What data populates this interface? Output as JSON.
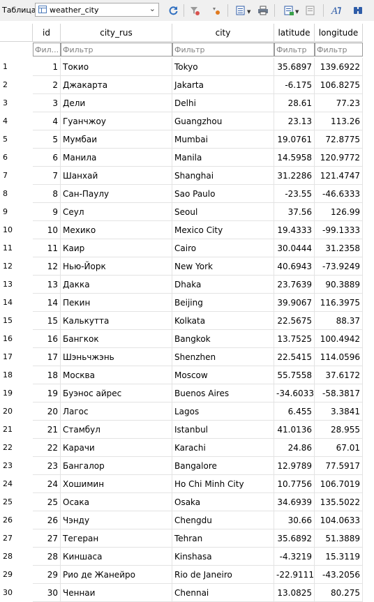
{
  "toolbar": {
    "label": "Таблица:",
    "table_name": "weather_city"
  },
  "columns": [
    "id",
    "city_rus",
    "city",
    "latitude",
    "longitude"
  ],
  "filters": {
    "id": "Фил...",
    "city_rus": "Фильтр",
    "city": "Фильтр",
    "latitude": "Фильтр",
    "longitude": "Фильтр"
  },
  "rows": [
    [
      "1",
      "1",
      "Токио",
      "Tokyo",
      "35.6897",
      "139.6922"
    ],
    [
      "2",
      "2",
      "Джакарта",
      "Jakarta",
      "-6.175",
      "106.8275"
    ],
    [
      "3",
      "3",
      "Дели",
      "Delhi",
      "28.61",
      "77.23"
    ],
    [
      "4",
      "4",
      "Гуанчжоу",
      "Guangzhou",
      "23.13",
      "113.26"
    ],
    [
      "5",
      "5",
      "Мумбаи",
      "Mumbai",
      "19.0761",
      "72.8775"
    ],
    [
      "6",
      "6",
      "Манила",
      "Manila",
      "14.5958",
      "120.9772"
    ],
    [
      "7",
      "7",
      "Шанхай",
      "Shanghai",
      "31.2286",
      "121.4747"
    ],
    [
      "8",
      "8",
      "Сан-Паулу",
      "Sao Paulo",
      "-23.55",
      "-46.6333"
    ],
    [
      "9",
      "9",
      "Сеул",
      "Seoul",
      "37.56",
      "126.99"
    ],
    [
      "10",
      "10",
      "Мехико",
      "Mexico City",
      "19.4333",
      "-99.1333"
    ],
    [
      "11",
      "11",
      "Каир",
      "Cairo",
      "30.0444",
      "31.2358"
    ],
    [
      "12",
      "12",
      "Нью-Йорк",
      "New York",
      "40.6943",
      "-73.9249"
    ],
    [
      "13",
      "13",
      "Дакка",
      "Dhaka",
      "23.7639",
      "90.3889"
    ],
    [
      "14",
      "14",
      "Пекин",
      "Beijing",
      "39.9067",
      "116.3975"
    ],
    [
      "15",
      "15",
      "Калькутта",
      "Kolkata",
      "22.5675",
      "88.37"
    ],
    [
      "16",
      "16",
      "Бангкок",
      "Bangkok",
      "13.7525",
      "100.4942"
    ],
    [
      "17",
      "17",
      "Шэньчжэнь",
      "Shenzhen",
      "22.5415",
      "114.0596"
    ],
    [
      "18",
      "18",
      "Москва",
      "Moscow",
      "55.7558",
      "37.6172"
    ],
    [
      "19",
      "19",
      "Буэнос айрес",
      "Buenos Aires",
      "-34.6033",
      "-58.3817"
    ],
    [
      "20",
      "20",
      "Лагос",
      "Lagos",
      "6.455",
      "3.3841"
    ],
    [
      "21",
      "21",
      "Стамбул",
      "Istanbul",
      "41.0136",
      "28.955"
    ],
    [
      "22",
      "22",
      "Карачи",
      "Karachi",
      "24.86",
      "67.01"
    ],
    [
      "23",
      "23",
      "Бангалор",
      "Bangalore",
      "12.9789",
      "77.5917"
    ],
    [
      "24",
      "24",
      "Хошимин",
      "Ho Chi Minh City",
      "10.7756",
      "106.7019"
    ],
    [
      "25",
      "25",
      "Осака",
      "Osaka",
      "34.6939",
      "135.5022"
    ],
    [
      "26",
      "26",
      "Чэнду",
      "Chengdu",
      "30.66",
      "104.0633"
    ],
    [
      "27",
      "27",
      "Тегеран",
      "Tehran",
      "35.6892",
      "51.3889"
    ],
    [
      "28",
      "28",
      "Киншаса",
      "Kinshasa",
      "-4.3219",
      "15.3119"
    ],
    [
      "29",
      "29",
      "Рио де Жанейро",
      "Rio de Janeiro",
      "-22.9111",
      "-43.2056"
    ],
    [
      "30",
      "30",
      "Ченнаи",
      "Chennai",
      "13.0825",
      "80.275"
    ]
  ]
}
